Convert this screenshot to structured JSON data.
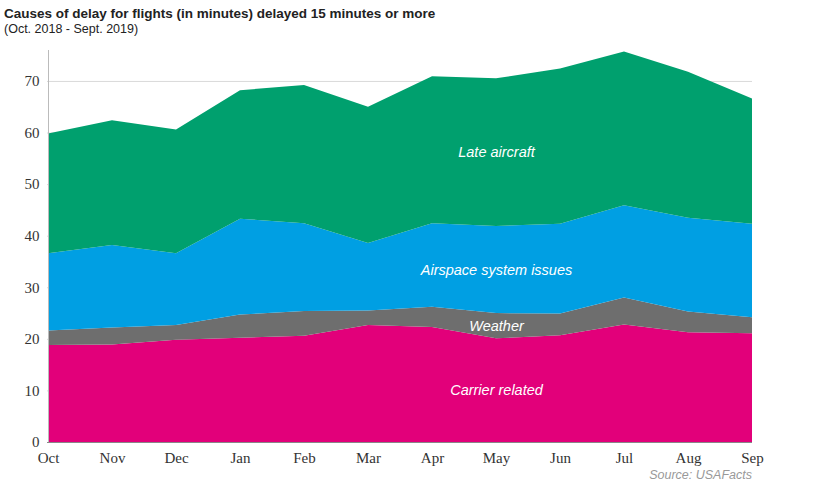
{
  "chart_data": {
    "type": "area",
    "title": "Causes of delay for flights (in minutes) delayed 15 minutes or more",
    "subtitle": "(Oct. 2018 - Sept. 2019)",
    "caption": "Source: USAFacts",
    "stacked": true,
    "grid": true,
    "categories": [
      "Oct",
      "Nov",
      "Dec",
      "Jan",
      "Feb",
      "Mar",
      "Apr",
      "May",
      "Jun",
      "Jul",
      "Aug",
      "Sep"
    ],
    "ylim": [
      0,
      76
    ],
    "yticks": [
      0,
      10,
      20,
      30,
      40,
      50,
      60,
      70
    ],
    "series": [
      {
        "name": "Carrier related",
        "color": "#e2007a",
        "values": [
          18.8,
          18.9,
          19.8,
          20.2,
          20.6,
          22.7,
          22.3,
          20.1,
          20.7,
          22.8,
          21.3,
          21.1
        ]
      },
      {
        "name": "Weather",
        "color": "#6e6e6e",
        "values": [
          2.8,
          3.3,
          2.9,
          4.5,
          4.8,
          2.8,
          3.9,
          4.9,
          4.2,
          5.2,
          4.0,
          3.1
        ]
      },
      {
        "name": "Airspace system issues",
        "color": "#009fe3",
        "values": [
          15.0,
          16.0,
          13.9,
          18.6,
          17.0,
          13.1,
          16.2,
          16.9,
          17.4,
          17.9,
          18.2,
          18.1
        ]
      },
      {
        "name": "Late aircraft",
        "color": "#00a06e",
        "values": [
          23.2,
          24.2,
          24.0,
          24.9,
          26.8,
          26.4,
          28.5,
          28.6,
          30.1,
          29.8,
          28.3,
          24.3
        ]
      }
    ]
  }
}
